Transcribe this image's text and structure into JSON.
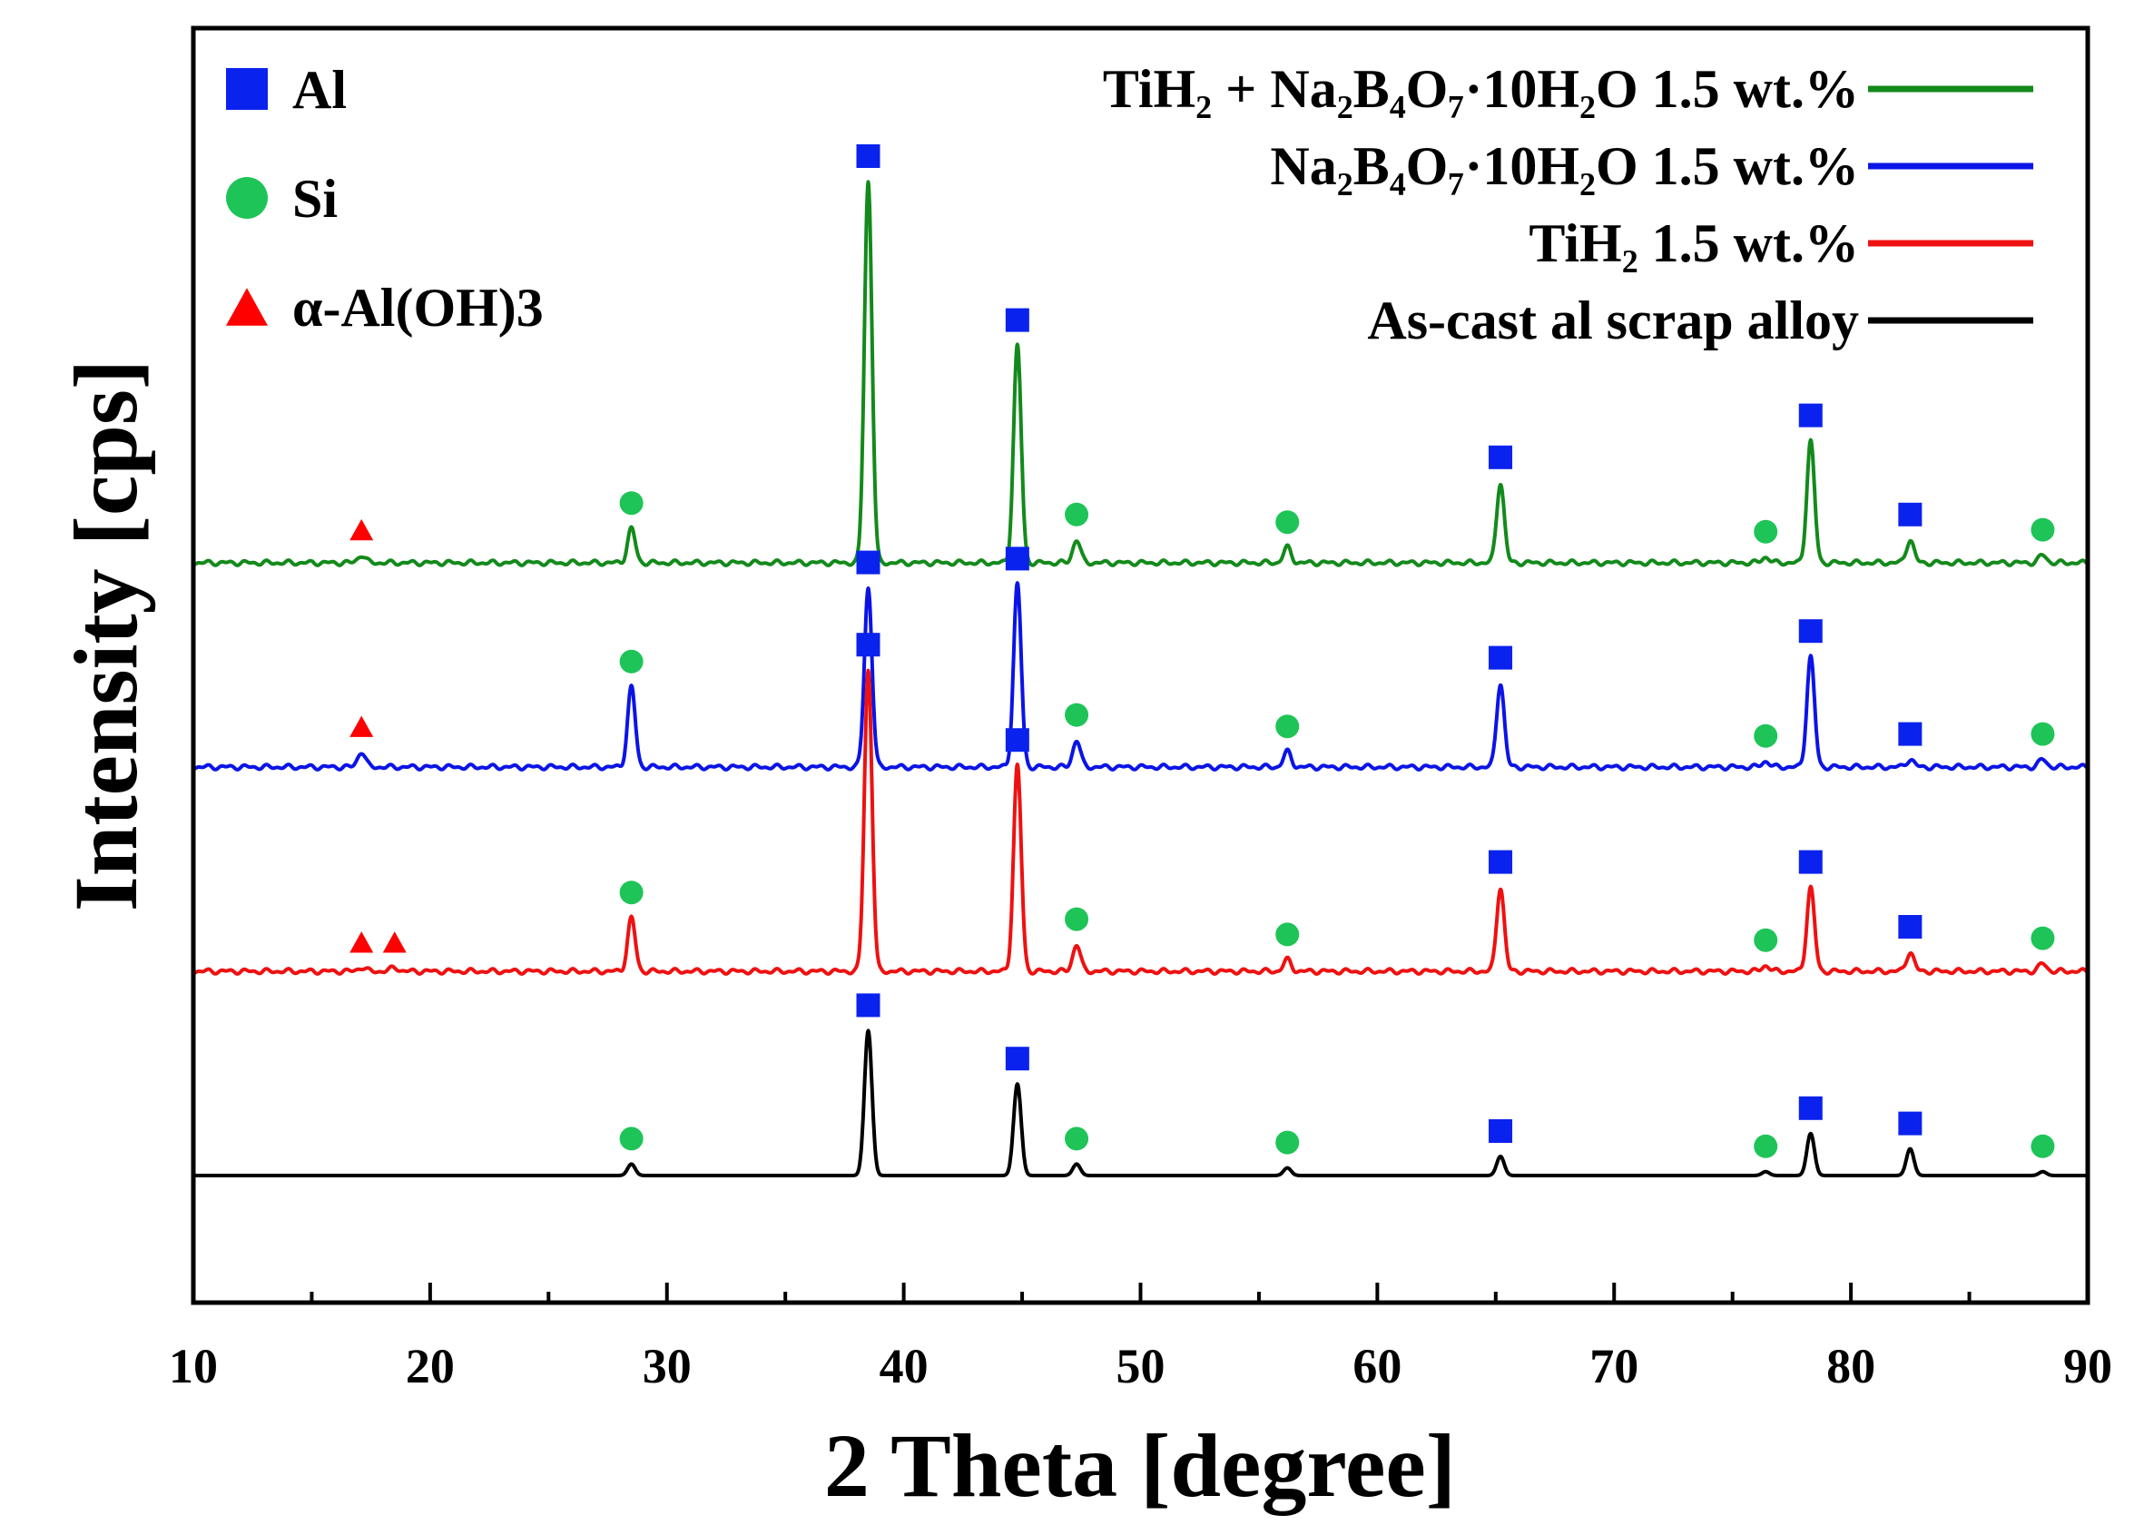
{
  "chart_data": {
    "type": "line",
    "xlabel": "2 Theta [degree]",
    "ylabel": "Intensity [cps]",
    "xlim": [
      10,
      90
    ],
    "x_ticks": [
      10,
      20,
      30,
      40,
      50,
      60,
      70,
      80,
      90
    ],
    "y_ticks": [],
    "phase_legend": [
      {
        "name": "Al",
        "marker": "square",
        "color": "#0a22ee"
      },
      {
        "name": "Si",
        "marker": "circle",
        "color": "#1ec457"
      },
      {
        "name": "α-Al(OH)3",
        "marker": "triangle",
        "color": "#ff0000"
      }
    ],
    "series": [
      {
        "name": "TiH₂ + Na₂B₄O₇·10H₂O 1.5 wt.%",
        "color": "#138a1b",
        "offset": 3,
        "peaks": [
          {
            "x": 17.1,
            "height": 0.02
          },
          {
            "x": 28.5,
            "height": 0.09
          },
          {
            "x": 38.5,
            "height": 1.0
          },
          {
            "x": 44.8,
            "height": 0.57
          },
          {
            "x": 47.3,
            "height": 0.06
          },
          {
            "x": 56.2,
            "height": 0.04
          },
          {
            "x": 65.2,
            "height": 0.21
          },
          {
            "x": 76.4,
            "height": 0.015
          },
          {
            "x": 78.3,
            "height": 0.32
          },
          {
            "x": 82.5,
            "height": 0.06
          },
          {
            "x": 88.1,
            "height": 0.02
          }
        ]
      },
      {
        "name": "Na₂B₄O₇·10H₂O 1.5 wt.%",
        "color": "#0b14e6",
        "offset": 2,
        "peaks": [
          {
            "x": 17.1,
            "height": 0.04
          },
          {
            "x": 28.5,
            "height": 0.21
          },
          {
            "x": 38.5,
            "height": 0.47
          },
          {
            "x": 44.8,
            "height": 0.48
          },
          {
            "x": 47.3,
            "height": 0.07
          },
          {
            "x": 56.2,
            "height": 0.04
          },
          {
            "x": 65.2,
            "height": 0.22
          },
          {
            "x": 76.4,
            "height": 0.015
          },
          {
            "x": 78.3,
            "height": 0.29
          },
          {
            "x": 82.5,
            "height": 0.02
          },
          {
            "x": 88.1,
            "height": 0.02
          }
        ]
      },
      {
        "name": "TiH₂ 1.5 wt.%",
        "color": "#ee1111",
        "offset": 1,
        "peaks": [
          {
            "x": 17.1,
            "height": 0.01
          },
          {
            "x": 18.5,
            "height": 0.01
          },
          {
            "x": 28.5,
            "height": 0.14
          },
          {
            "x": 38.5,
            "height": 0.79
          },
          {
            "x": 44.8,
            "height": 0.54
          },
          {
            "x": 47.3,
            "height": 0.07
          },
          {
            "x": 56.2,
            "height": 0.03
          },
          {
            "x": 65.2,
            "height": 0.22
          },
          {
            "x": 76.4,
            "height": 0.015
          },
          {
            "x": 78.3,
            "height": 0.22
          },
          {
            "x": 82.5,
            "height": 0.05
          },
          {
            "x": 88.1,
            "height": 0.02
          }
        ]
      },
      {
        "name": "As-cast al scrap alloy",
        "color": "#000000",
        "offset": 0,
        "peaks": [
          {
            "x": 28.5,
            "height": 0.03
          },
          {
            "x": 38.5,
            "height": 0.38
          },
          {
            "x": 44.8,
            "height": 0.24
          },
          {
            "x": 47.3,
            "height": 0.03
          },
          {
            "x": 56.2,
            "height": 0.02
          },
          {
            "x": 65.2,
            "height": 0.05
          },
          {
            "x": 76.4,
            "height": 0.01
          },
          {
            "x": 78.3,
            "height": 0.11
          },
          {
            "x": 82.5,
            "height": 0.07
          },
          {
            "x": 88.1,
            "height": 0.01
          }
        ]
      }
    ],
    "phase_markers": [
      {
        "series": 0,
        "phase": "Al",
        "x": [
          38.5,
          44.8,
          65.2,
          78.3,
          82.5
        ]
      },
      {
        "series": 0,
        "phase": "Si",
        "x": [
          28.5,
          47.3,
          56.2,
          76.4,
          88.1
        ]
      },
      {
        "series": 0,
        "phase": "α-Al(OH)3",
        "x": [
          17.1
        ]
      },
      {
        "series": 1,
        "phase": "Al",
        "x": [
          38.5,
          44.8,
          65.2,
          78.3,
          82.5
        ]
      },
      {
        "series": 1,
        "phase": "Si",
        "x": [
          28.5,
          47.3,
          56.2,
          76.4,
          88.1
        ]
      },
      {
        "series": 1,
        "phase": "α-Al(OH)3",
        "x": [
          17.1
        ]
      },
      {
        "series": 2,
        "phase": "Al",
        "x": [
          38.5,
          44.8,
          65.2,
          78.3,
          82.5
        ]
      },
      {
        "series": 2,
        "phase": "Si",
        "x": [
          28.5,
          47.3,
          56.2,
          76.4,
          88.1
        ]
      },
      {
        "series": 2,
        "phase": "α-Al(OH)3",
        "x": [
          17.1,
          18.5
        ]
      },
      {
        "series": 3,
        "phase": "Al",
        "x": [
          38.5,
          44.8,
          65.2,
          78.3,
          82.5
        ]
      },
      {
        "series": 3,
        "phase": "Si",
        "x": [
          28.5,
          47.3,
          56.2,
          76.4,
          88.1
        ]
      }
    ]
  }
}
